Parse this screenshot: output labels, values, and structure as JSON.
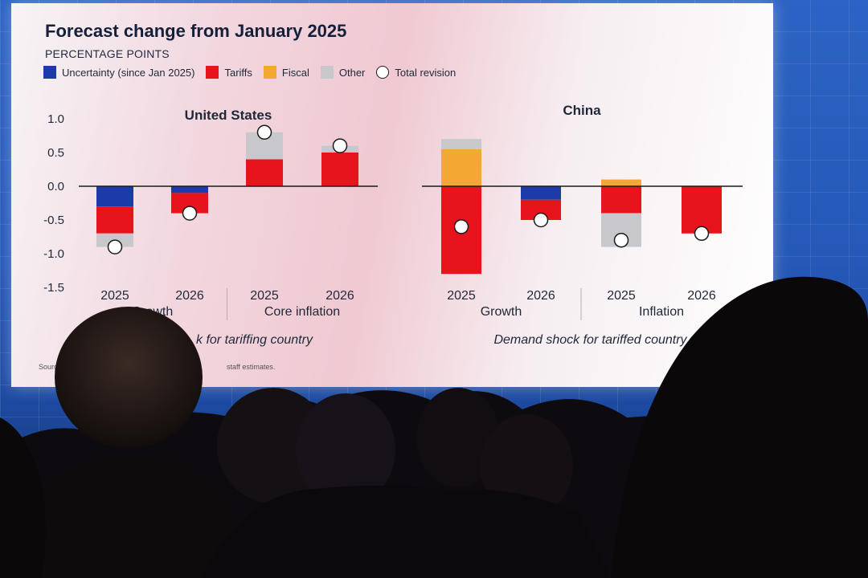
{
  "slide": {
    "title": "Forecast change from January 2025",
    "subtitle": "PERCENTAGE POINTS",
    "source_prefix": "Sourc",
    "source_suffix": "staff estimates."
  },
  "legend": [
    {
      "label": "Uncertainty (since Jan 2025)",
      "color": "#1c3aa9",
      "shape": "square"
    },
    {
      "label": "Tariffs",
      "color": "#e8141c",
      "shape": "square"
    },
    {
      "label": "Fiscal",
      "color": "#f2a833",
      "shape": "square"
    },
    {
      "label": "Other",
      "color": "#c8c8cc",
      "shape": "square"
    },
    {
      "label": "Total revision",
      "color": "#ffffff",
      "shape": "circle"
    }
  ],
  "colors": {
    "uncertainty": "#1c3aa9",
    "tariffs": "#e8141c",
    "fiscal": "#f2a833",
    "other": "#c8c8cc",
    "axis": "#1b1b1b",
    "text": "#1f2738"
  },
  "chart_data": [
    {
      "type": "bar",
      "stacked": true,
      "title": "United States",
      "ylim": [
        -1.5,
        1.0
      ],
      "yticks": [
        "1.0",
        "0.5",
        "0.0",
        "-0.5",
        "-1.0",
        "-1.5"
      ],
      "ytick_values": [
        1.0,
        0.5,
        0.0,
        -0.5,
        -1.0,
        -1.5
      ],
      "categories": [
        "2025",
        "2026",
        "2025",
        "2026"
      ],
      "groups": [
        "Growth",
        "Core inflation"
      ],
      "group_label_visible": [
        "Growth",
        "Core inflation"
      ],
      "caption": "Supply shock for tariffing country",
      "caption_visible": "k for tariffing country",
      "series": [
        {
          "name": "Uncertainty (since Jan 2025)",
          "values": [
            -0.3,
            -0.1,
            0.0,
            0.0
          ]
        },
        {
          "name": "Tariffs",
          "values": [
            -0.4,
            -0.3,
            0.4,
            0.5
          ]
        },
        {
          "name": "Fiscal",
          "values": [
            0.0,
            0.0,
            0.0,
            0.0
          ]
        },
        {
          "name": "Other",
          "values": [
            -0.2,
            0.0,
            0.4,
            0.1
          ]
        }
      ],
      "total_revision": [
        -0.9,
        -0.4,
        0.8,
        0.6
      ]
    },
    {
      "type": "bar",
      "stacked": true,
      "title": "China",
      "ylim": [
        -1.5,
        1.0
      ],
      "categories": [
        "2025",
        "2026",
        "2025",
        "2026"
      ],
      "groups": [
        "Growth",
        "Inflation"
      ],
      "caption": "Demand shock for tariffed country",
      "series": [
        {
          "name": "Uncertainty (since Jan 2025)",
          "values": [
            0.0,
            -0.2,
            0.0,
            0.0
          ]
        },
        {
          "name": "Tariffs",
          "values": [
            -1.3,
            -0.3,
            -0.4,
            -0.7
          ]
        },
        {
          "name": "Fiscal",
          "values": [
            0.55,
            0.0,
            0.1,
            0.0
          ]
        },
        {
          "name": "Other",
          "values": [
            0.15,
            0.0,
            -0.5,
            0.0
          ]
        }
      ],
      "total_revision": [
        -0.6,
        -0.5,
        -0.8,
        -0.7
      ]
    }
  ]
}
